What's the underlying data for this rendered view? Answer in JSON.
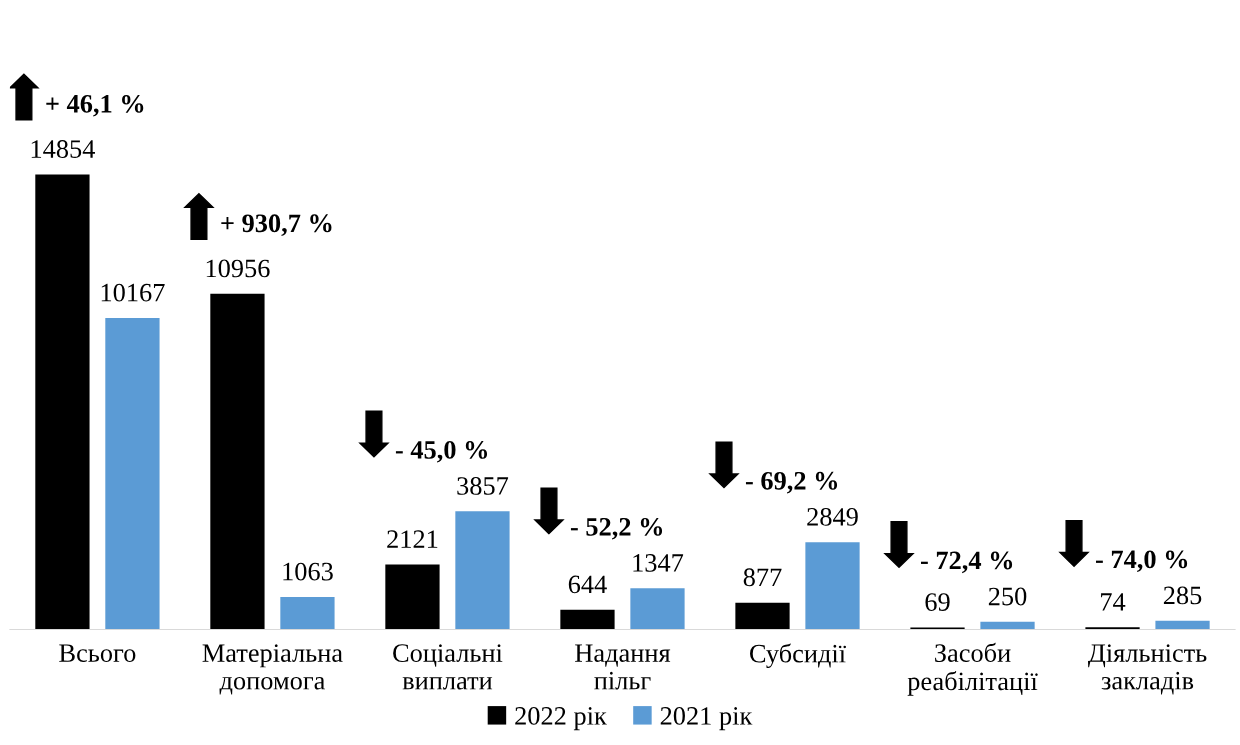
{
  "chart_data": {
    "type": "bar",
    "categories": [
      "Всього",
      "Матеріальна\nдопомога",
      "Соціальні\nвиплати",
      "Надання\nпільг",
      "Субсидії",
      "Засоби\nреабілітації",
      "Діяльність\nзакладів"
    ],
    "series": [
      {
        "name": "2022 рік",
        "color": "#000000",
        "values": [
          14854,
          10956,
          2121,
          644,
          877,
          69,
          74
        ]
      },
      {
        "name": "2021 рік",
        "color": "#5b9bd5",
        "values": [
          10167,
          1063,
          3857,
          1347,
          2849,
          250,
          285
        ]
      }
    ],
    "annotations": [
      "+ 46,1 %",
      "+ 930,7 %",
      "- 45,0 %",
      "- 52,2 %",
      "- 69,2 %",
      "- 72,4 %",
      "- 74,0 %"
    ],
    "data_labels": true,
    "legend": "bottom",
    "grid": false
  }
}
